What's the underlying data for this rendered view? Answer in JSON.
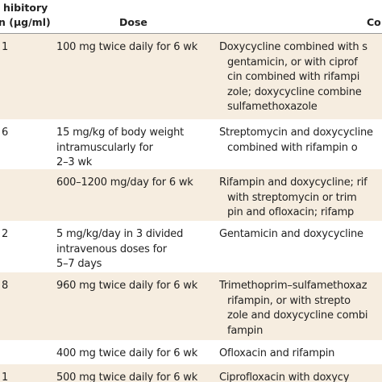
{
  "header": {
    "mic": [
      "hibitory",
      "n (µg/ml)"
    ],
    "dose": "Dose",
    "combination": "Co"
  },
  "rows": [
    {
      "mic": "1",
      "dose": [
        "100 mg twice daily for 6 wk"
      ],
      "combination": [
        "Doxycycline combined with s",
        "gentamicin, or with ciprof",
        "cin combined with rifampi",
        "zole; doxycycline combine",
        "sulfamethoxazole"
      ]
    },
    {
      "mic": "6",
      "dose": [
        "15 mg/kg of body weight",
        "intramuscularly for",
        "2–3 wk"
      ],
      "combination": [
        "Streptomycin and doxycycline",
        "combined with rifampin o"
      ]
    },
    {
      "mic": "",
      "dose": [
        "600–1200 mg/day for 6 wk"
      ],
      "combination": [
        "Rifampin and doxycycline; rif",
        "with streptomycin or trim",
        "pin and ofloxacin; rifamp"
      ]
    },
    {
      "mic": "2",
      "dose": [
        "5 mg/kg/day in 3 divided",
        "intravenous doses for",
        "5–7 days"
      ],
      "combination": [
        "Gentamicin and doxycycline"
      ]
    },
    {
      "mic": "8",
      "dose": [
        "960 mg twice daily for 6 wk"
      ],
      "combination": [
        "Trimethoprim–sulfamethoxaz",
        "rifampin, or with strepto",
        "zole and doxycycline combi",
        "fampin"
      ]
    },
    {
      "mic": "",
      "dose": [
        "400 mg twice daily for 6 wk"
      ],
      "combination": [
        "Ofloxacin and rifampin"
      ]
    },
    {
      "mic": "1",
      "dose": [
        "500 mg twice daily for 6 wk"
      ],
      "combination": [
        "Ciprofloxacin with doxycy"
      ]
    }
  ]
}
